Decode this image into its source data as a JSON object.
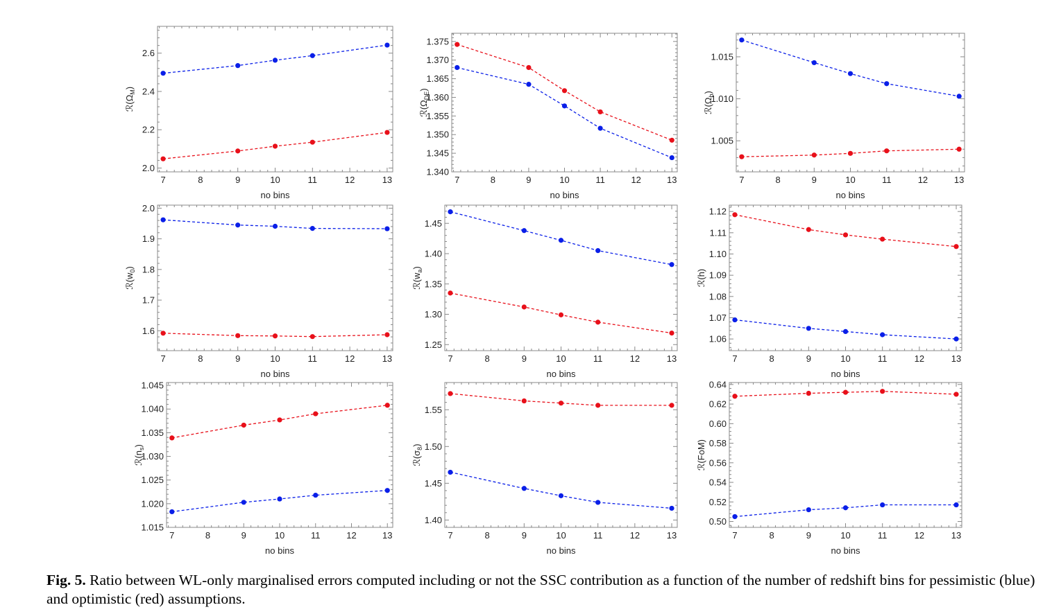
{
  "caption": {
    "label": "Fig. 5.",
    "text": "Ratio between WL-only marginalised errors computed including or not the SSC contribution as a function of the number of redshift bins for pessimistic (blue) and optimistic (red) assumptions."
  },
  "colors": {
    "pessimistic": "#0a1fe8",
    "optimistic": "#e8101a"
  },
  "chart_data": [
    {
      "type": "line",
      "ylabel": "ℛ(Ω_M)",
      "ylabel_parts": [
        "ℛ(Ω",
        "M",
        ")"
      ],
      "xlabel": "no bins",
      "x": [
        7,
        9,
        10,
        11,
        13
      ],
      "xlim": [
        6.85,
        13.15
      ],
      "xticks": [
        7,
        8,
        9,
        10,
        11,
        12,
        13
      ],
      "ylim": [
        1.98,
        2.74
      ],
      "yticks": [
        2.0,
        2.2,
        2.4,
        2.6
      ],
      "ytick_labels": [
        "2.0",
        "2.2",
        "2.4",
        "2.6"
      ],
      "series": [
        {
          "color": "#0a1fe8",
          "values": [
            2.495,
            2.535,
            2.563,
            2.587,
            2.642
          ]
        },
        {
          "color": "#e8101a",
          "values": [
            2.048,
            2.089,
            2.114,
            2.135,
            2.186
          ]
        }
      ]
    },
    {
      "type": "line",
      "ylabel": "ℛ(Ω_DE)",
      "ylabel_parts": [
        "ℛ(Ω",
        "DE",
        ")"
      ],
      "xlabel": "no bins",
      "x": [
        7,
        9,
        10,
        11,
        13
      ],
      "xlim": [
        6.85,
        13.15
      ],
      "xticks": [
        7,
        8,
        9,
        10,
        11,
        12,
        13
      ],
      "ylim": [
        1.34,
        1.3772
      ],
      "yticks": [
        1.34,
        1.345,
        1.35,
        1.355,
        1.36,
        1.365,
        1.37,
        1.375
      ],
      "ytick_labels": [
        "1.340",
        "1.345",
        "1.350",
        "1.355",
        "1.360",
        "1.365",
        "1.370",
        "1.375"
      ],
      "series": [
        {
          "color": "#0a1fe8",
          "values": [
            1.368,
            1.3635,
            1.3577,
            1.3517,
            1.3438
          ]
        },
        {
          "color": "#e8101a",
          "values": [
            1.3742,
            1.368,
            1.3618,
            1.3561,
            1.3485
          ]
        }
      ]
    },
    {
      "type": "line",
      "ylabel": "ℛ(Ω_b)",
      "ylabel_parts": [
        "ℛ(Ω",
        "b",
        ")"
      ],
      "xlabel": "no bins",
      "x": [
        7,
        9,
        10,
        11,
        13
      ],
      "xlim": [
        6.85,
        13.15
      ],
      "xticks": [
        7,
        8,
        9,
        10,
        11,
        12,
        13
      ],
      "ylim": [
        1.0013,
        1.0178
      ],
      "yticks": [
        1.005,
        1.01,
        1.015
      ],
      "ytick_labels": [
        "1.005",
        "1.010",
        "1.015"
      ],
      "series": [
        {
          "color": "#0a1fe8",
          "values": [
            1.017,
            1.0143,
            1.013,
            1.0118,
            1.0103
          ]
        },
        {
          "color": "#e8101a",
          "values": [
            1.0031,
            1.0033,
            1.0035,
            1.0038,
            1.004
          ]
        }
      ]
    },
    {
      "type": "line",
      "ylabel": "ℛ(w_0)",
      "ylabel_parts": [
        "ℛ(w",
        "0",
        ")"
      ],
      "xlabel": "no bins",
      "x": [
        7,
        9,
        10,
        11,
        13
      ],
      "xlim": [
        6.85,
        13.15
      ],
      "xticks": [
        7,
        8,
        9,
        10,
        11,
        12,
        13
      ],
      "ylim": [
        1.535,
        2.01
      ],
      "yticks": [
        1.6,
        1.7,
        1.8,
        1.9,
        2.0
      ],
      "ytick_labels": [
        "1.6",
        "1.7",
        "1.8",
        "1.9",
        "2.0"
      ],
      "series": [
        {
          "color": "#0a1fe8",
          "values": [
            1.962,
            1.945,
            1.941,
            1.934,
            1.933
          ]
        },
        {
          "color": "#e8101a",
          "values": [
            1.592,
            1.584,
            1.583,
            1.581,
            1.587
          ]
        }
      ]
    },
    {
      "type": "line",
      "ylabel": "ℛ(w_a)",
      "ylabel_parts": [
        "ℛ(w",
        "a",
        ")"
      ],
      "xlabel": "no bins",
      "x": [
        7,
        9,
        10,
        11,
        13
      ],
      "xlim": [
        6.85,
        13.15
      ],
      "xticks": [
        7,
        8,
        9,
        10,
        11,
        12,
        13
      ],
      "ylim": [
        1.24,
        1.48
      ],
      "yticks": [
        1.25,
        1.3,
        1.35,
        1.4,
        1.45
      ],
      "ytick_labels": [
        "1.25",
        "1.30",
        "1.35",
        "1.40",
        "1.45"
      ],
      "series": [
        {
          "color": "#0a1fe8",
          "values": [
            1.469,
            1.438,
            1.422,
            1.405,
            1.382
          ]
        },
        {
          "color": "#e8101a",
          "values": [
            1.335,
            1.312,
            1.299,
            1.287,
            1.269
          ]
        }
      ]
    },
    {
      "type": "line",
      "ylabel": "ℛ(h)",
      "ylabel_parts": [
        "ℛ(h)",
        "",
        ""
      ],
      "xlabel": "no bins",
      "x": [
        7,
        9,
        10,
        11,
        13
      ],
      "xlim": [
        6.85,
        13.15
      ],
      "xticks": [
        7,
        8,
        9,
        10,
        11,
        12,
        13
      ],
      "ylim": [
        1.0545,
        1.123
      ],
      "yticks": [
        1.06,
        1.07,
        1.08,
        1.09,
        1.1,
        1.11,
        1.12
      ],
      "ytick_labels": [
        "1.06",
        "1.07",
        "1.08",
        "1.09",
        "1.10",
        "1.11",
        "1.12"
      ],
      "series": [
        {
          "color": "#0a1fe8",
          "values": [
            1.069,
            1.065,
            1.0635,
            1.062,
            1.06
          ]
        },
        {
          "color": "#e8101a",
          "values": [
            1.1185,
            1.1115,
            1.109,
            1.107,
            1.1035
          ]
        }
      ]
    },
    {
      "type": "line",
      "ylabel": "ℛ(n_s)",
      "ylabel_parts": [
        "ℛ(n",
        "s",
        ")"
      ],
      "xlabel": "no bins",
      "x": [
        7,
        9,
        10,
        11,
        13
      ],
      "xlim": [
        6.85,
        13.15
      ],
      "xticks": [
        7,
        8,
        9,
        10,
        11,
        12,
        13
      ],
      "ylim": [
        1.015,
        1.0456
      ],
      "yticks": [
        1.015,
        1.02,
        1.025,
        1.03,
        1.035,
        1.04,
        1.045
      ],
      "ytick_labels": [
        "1.015",
        "1.020",
        "1.025",
        "1.030",
        "1.035",
        "1.040",
        "1.045"
      ],
      "series": [
        {
          "color": "#0a1fe8",
          "values": [
            1.0183,
            1.0203,
            1.021,
            1.0218,
            1.0228
          ]
        },
        {
          "color": "#e8101a",
          "values": [
            1.0339,
            1.0366,
            1.0377,
            1.039,
            1.0408
          ]
        }
      ]
    },
    {
      "type": "line",
      "ylabel": "ℛ(σ_8)",
      "ylabel_parts": [
        "ℛ(σ",
        "8",
        ")"
      ],
      "xlabel": "no bins",
      "x": [
        7,
        9,
        10,
        11,
        13
      ],
      "xlim": [
        6.85,
        13.15
      ],
      "xticks": [
        7,
        8,
        9,
        10,
        11,
        12,
        13
      ],
      "ylim": [
        1.39,
        1.587
      ],
      "yticks": [
        1.4,
        1.45,
        1.5,
        1.55
      ],
      "ytick_labels": [
        "1.40",
        "1.45",
        "1.50",
        "1.55"
      ],
      "series": [
        {
          "color": "#0a1fe8",
          "values": [
            1.465,
            1.443,
            1.433,
            1.424,
            1.416
          ]
        },
        {
          "color": "#e8101a",
          "values": [
            1.572,
            1.562,
            1.559,
            1.556,
            1.556
          ]
        }
      ]
    },
    {
      "type": "line",
      "ylabel": "ℛ(FoM)",
      "ylabel_parts": [
        "ℛ(FoM)",
        "",
        ""
      ],
      "xlabel": "no bins",
      "x": [
        7,
        9,
        10,
        11,
        13
      ],
      "xlim": [
        6.85,
        13.15
      ],
      "xticks": [
        7,
        8,
        9,
        10,
        11,
        12,
        13
      ],
      "ylim": [
        0.494,
        0.642
      ],
      "yticks": [
        0.5,
        0.52,
        0.54,
        0.56,
        0.58,
        0.6,
        0.62,
        0.64
      ],
      "ytick_labels": [
        "0.50",
        "0.52",
        "0.54",
        "0.56",
        "0.58",
        "0.60",
        "0.62",
        "0.64"
      ],
      "series": [
        {
          "color": "#0a1fe8",
          "values": [
            0.505,
            0.512,
            0.514,
            0.517,
            0.517
          ]
        },
        {
          "color": "#e8101a",
          "values": [
            0.628,
            0.631,
            0.632,
            0.633,
            0.63
          ]
        }
      ]
    }
  ]
}
